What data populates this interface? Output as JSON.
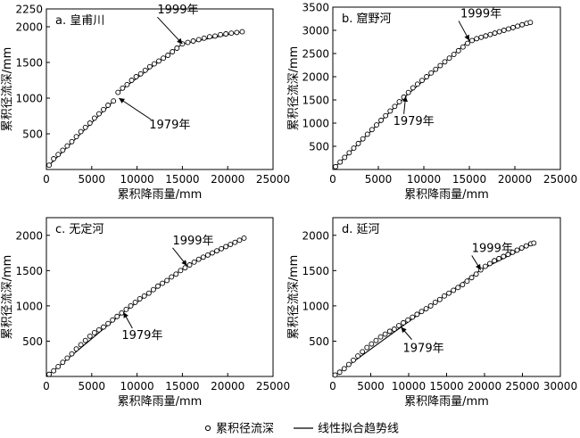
{
  "legend": {
    "marker_label": "累积径流深",
    "line_label": "线性拟合趋势线"
  },
  "chart_data": [
    {
      "type": "scatter",
      "title": "a. 皇甫川",
      "xlabel": "累积降雨量/mm",
      "ylabel": "累积径流深/mm",
      "xlim": [
        0,
        25000
      ],
      "ylim": [
        0,
        2250
      ],
      "xticks": [
        0,
        5000,
        10000,
        15000,
        20000,
        25000
      ],
      "yticks": [
        500,
        1000,
        1500,
        2000,
        2250
      ],
      "annotations": [
        {
          "text": "1999年",
          "x": 15000,
          "y": 1760
        },
        {
          "text": "1979年",
          "x": 8000,
          "y": 1000
        }
      ],
      "observed": [
        [
          300,
          60
        ],
        [
          800,
          150
        ],
        [
          1300,
          210
        ],
        [
          1800,
          270
        ],
        [
          2300,
          330
        ],
        [
          2800,
          390
        ],
        [
          3300,
          460
        ],
        [
          3800,
          530
        ],
        [
          4300,
          590
        ],
        [
          4800,
          650
        ],
        [
          5300,
          720
        ],
        [
          5800,
          780
        ],
        [
          6300,
          840
        ],
        [
          6800,
          900
        ],
        [
          7400,
          960
        ],
        [
          7900,
          1080
        ],
        [
          8400,
          1140
        ],
        [
          8900,
          1190
        ],
        [
          9400,
          1250
        ],
        [
          9900,
          1300
        ],
        [
          10400,
          1340
        ],
        [
          10900,
          1390
        ],
        [
          11400,
          1440
        ],
        [
          11900,
          1480
        ],
        [
          12400,
          1520
        ],
        [
          12900,
          1560
        ],
        [
          13400,
          1600
        ],
        [
          13900,
          1650
        ],
        [
          14400,
          1700
        ],
        [
          15000,
          1760
        ],
        [
          15600,
          1780
        ],
        [
          16200,
          1800
        ],
        [
          16800,
          1820
        ],
        [
          17400,
          1840
        ],
        [
          18000,
          1860
        ],
        [
          18600,
          1870
        ],
        [
          19200,
          1890
        ],
        [
          19800,
          1900
        ],
        [
          20400,
          1910
        ],
        [
          21000,
          1920
        ],
        [
          21600,
          1930
        ]
      ],
      "trend_segments": [
        [
          [
            300,
            60
          ],
          [
            7400,
            960
          ]
        ],
        [
          [
            7900,
            1080
          ],
          [
            15000,
            1760
          ]
        ],
        [
          [
            15000,
            1760
          ],
          [
            21600,
            1930
          ]
        ]
      ]
    },
    {
      "type": "scatter",
      "title": "b. 窟野河",
      "xlabel": "累积降雨量/mm",
      "ylabel": "累积径流深/mm",
      "xlim": [
        0,
        25000
      ],
      "ylim": [
        0,
        3500
      ],
      "xticks": [
        0,
        5000,
        10000,
        15000,
        20000,
        25000
      ],
      "yticks": [
        500,
        1000,
        1500,
        2000,
        2500,
        3000,
        3500
      ],
      "annotations": [
        {
          "text": "1999年",
          "x": 15000,
          "y": 2780
        },
        {
          "text": "1979年",
          "x": 8000,
          "y": 1580
        }
      ],
      "observed": [
        [
          300,
          60
        ],
        [
          800,
          160
        ],
        [
          1300,
          260
        ],
        [
          1800,
          360
        ],
        [
          2300,
          460
        ],
        [
          2800,
          560
        ],
        [
          3300,
          660
        ],
        [
          3800,
          760
        ],
        [
          4300,
          860
        ],
        [
          4800,
          960
        ],
        [
          5300,
          1060
        ],
        [
          5800,
          1160
        ],
        [
          6300,
          1260
        ],
        [
          6800,
          1360
        ],
        [
          7300,
          1460
        ],
        [
          7800,
          1560
        ],
        [
          8300,
          1660
        ],
        [
          8800,
          1760
        ],
        [
          9300,
          1840
        ],
        [
          9800,
          1920
        ],
        [
          10300,
          2000
        ],
        [
          10800,
          2080
        ],
        [
          11300,
          2160
        ],
        [
          11800,
          2240
        ],
        [
          12300,
          2320
        ],
        [
          12800,
          2400
        ],
        [
          13300,
          2480
        ],
        [
          13800,
          2560
        ],
        [
          14300,
          2640
        ],
        [
          14800,
          2720
        ],
        [
          15300,
          2780
        ],
        [
          15800,
          2820
        ],
        [
          16300,
          2850
        ],
        [
          16800,
          2880
        ],
        [
          17300,
          2910
        ],
        [
          17800,
          2940
        ],
        [
          18300,
          2970
        ],
        [
          18800,
          3000
        ],
        [
          19300,
          3030
        ],
        [
          19800,
          3060
        ],
        [
          20300,
          3090
        ],
        [
          20800,
          3120
        ],
        [
          21300,
          3150
        ],
        [
          21700,
          3170
        ]
      ],
      "trend_segments": [
        [
          [
            300,
            60
          ],
          [
            8000,
            1580
          ]
        ],
        [
          [
            8000,
            1580
          ],
          [
            15000,
            2780
          ]
        ],
        [
          [
            15000,
            2780
          ],
          [
            21700,
            3170
          ]
        ]
      ]
    },
    {
      "type": "scatter",
      "title": "c. 无定河",
      "xlabel": "累积降雨量/mm",
      "ylabel": "累积径流深/mm",
      "xlim": [
        0,
        25000
      ],
      "ylim": [
        0,
        2250
      ],
      "xticks": [
        0,
        5000,
        10000,
        15000,
        20000,
        25000
      ],
      "yticks": [
        500,
        1000,
        1500,
        2000
      ],
      "annotations": [
        {
          "text": "1999年",
          "x": 15500,
          "y": 1570
        },
        {
          "text": "1979年",
          "x": 8500,
          "y": 910
        }
      ],
      "observed": [
        [
          300,
          30
        ],
        [
          800,
          80
        ],
        [
          1300,
          140
        ],
        [
          1800,
          200
        ],
        [
          2300,
          260
        ],
        [
          2800,
          320
        ],
        [
          3300,
          390
        ],
        [
          3800,
          450
        ],
        [
          4300,
          510
        ],
        [
          4800,
          570
        ],
        [
          5300,
          620
        ],
        [
          5800,
          660
        ],
        [
          6300,
          700
        ],
        [
          6800,
          750
        ],
        [
          7300,
          800
        ],
        [
          7800,
          850
        ],
        [
          8300,
          900
        ],
        [
          8800,
          950
        ],
        [
          9300,
          1000
        ],
        [
          9800,
          1050
        ],
        [
          10300,
          1100
        ],
        [
          10800,
          1140
        ],
        [
          11300,
          1180
        ],
        [
          11800,
          1230
        ],
        [
          12300,
          1280
        ],
        [
          12800,
          1320
        ],
        [
          13300,
          1360
        ],
        [
          13800,
          1410
        ],
        [
          14300,
          1450
        ],
        [
          14800,
          1500
        ],
        [
          15300,
          1540
        ],
        [
          15800,
          1580
        ],
        [
          16300,
          1620
        ],
        [
          16800,
          1660
        ],
        [
          17300,
          1690
        ],
        [
          17800,
          1720
        ],
        [
          18300,
          1750
        ],
        [
          18800,
          1780
        ],
        [
          19300,
          1810
        ],
        [
          19800,
          1840
        ],
        [
          20300,
          1870
        ],
        [
          20800,
          1900
        ],
        [
          21300,
          1930
        ],
        [
          21800,
          1960
        ]
      ],
      "trend_segments": [
        [
          [
            300,
            30
          ],
          [
            8500,
            910
          ]
        ],
        [
          [
            8500,
            910
          ],
          [
            15500,
            1570
          ]
        ],
        [
          [
            15500,
            1570
          ],
          [
            21800,
            1960
          ]
        ]
      ]
    },
    {
      "type": "scatter",
      "title": "d. 延河",
      "xlabel": "累积降雨量/mm",
      "ylabel": "累积径流深/mm",
      "xlim": [
        0,
        30000
      ],
      "ylim": [
        0,
        2250
      ],
      "xticks": [
        0,
        5000,
        10000,
        15000,
        20000,
        25000,
        30000
      ],
      "yticks": [
        500,
        1000,
        1500,
        2000
      ],
      "annotations": [
        {
          "text": "1999年",
          "x": 19500,
          "y": 1510
        },
        {
          "text": "1979年",
          "x": 9000,
          "y": 700
        }
      ],
      "observed": [
        [
          300,
          20
        ],
        [
          900,
          60
        ],
        [
          1500,
          110
        ],
        [
          2100,
          170
        ],
        [
          2700,
          230
        ],
        [
          3300,
          290
        ],
        [
          3900,
          350
        ],
        [
          4500,
          410
        ],
        [
          5100,
          460
        ],
        [
          5700,
          510
        ],
        [
          6300,
          560
        ],
        [
          6900,
          600
        ],
        [
          7500,
          640
        ],
        [
          8100,
          670
        ],
        [
          8700,
          720
        ],
        [
          9300,
          760
        ],
        [
          9900,
          800
        ],
        [
          10500,
          840
        ],
        [
          11100,
          880
        ],
        [
          11700,
          920
        ],
        [
          12300,
          960
        ],
        [
          12900,
          1000
        ],
        [
          13500,
          1050
        ],
        [
          14100,
          1090
        ],
        [
          14700,
          1140
        ],
        [
          15300,
          1180
        ],
        [
          15900,
          1220
        ],
        [
          16500,
          1260
        ],
        [
          17100,
          1300
        ],
        [
          17700,
          1350
        ],
        [
          18300,
          1400
        ],
        [
          18900,
          1450
        ],
        [
          19500,
          1510
        ],
        [
          20100,
          1560
        ],
        [
          20700,
          1600
        ],
        [
          21300,
          1640
        ],
        [
          21900,
          1670
        ],
        [
          22500,
          1700
        ],
        [
          23100,
          1730
        ],
        [
          23700,
          1760
        ],
        [
          24300,
          1790
        ],
        [
          24900,
          1820
        ],
        [
          25500,
          1850
        ],
        [
          26100,
          1880
        ],
        [
          26500,
          1890
        ]
      ],
      "trend_segments": [
        [
          [
            300,
            20
          ],
          [
            9000,
            700
          ]
        ],
        [
          [
            9000,
            700
          ],
          [
            19500,
            1510
          ]
        ],
        [
          [
            19500,
            1510
          ],
          [
            26500,
            1890
          ]
        ]
      ]
    }
  ]
}
